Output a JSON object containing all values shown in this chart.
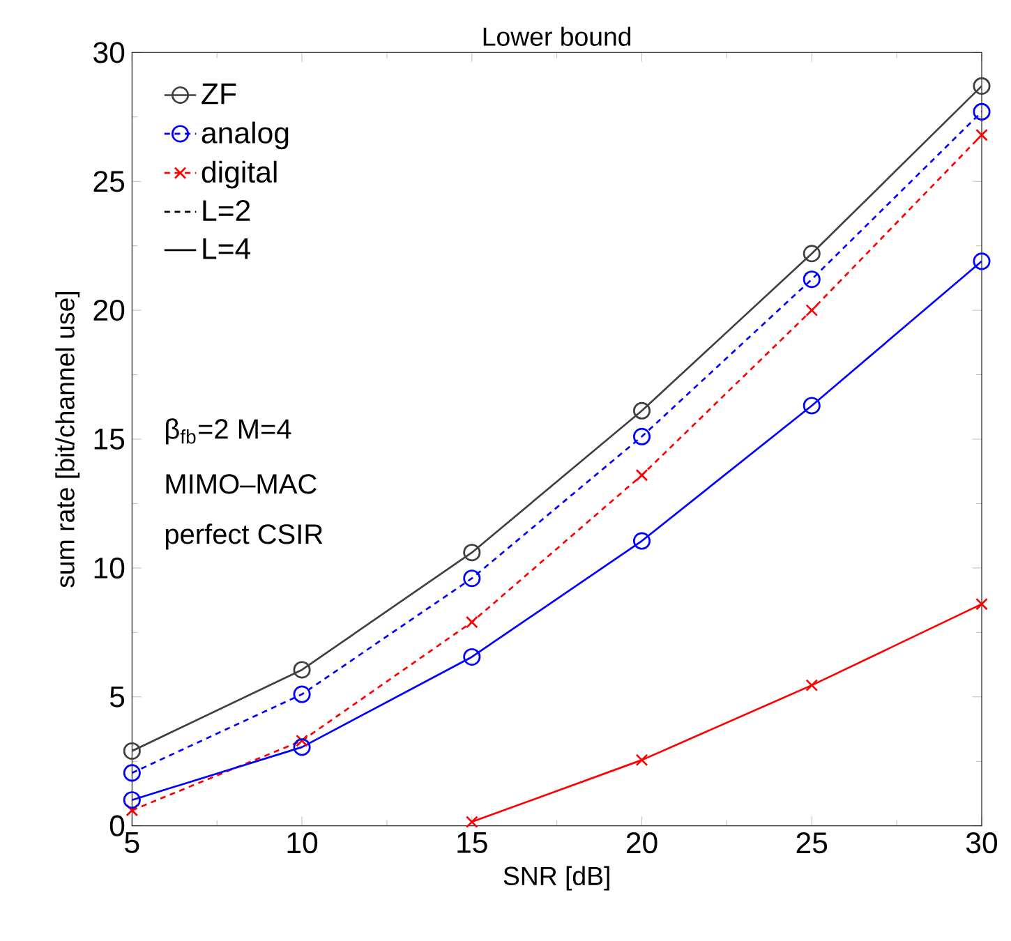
{
  "chart_data": {
    "type": "line",
    "title": "Lower bound",
    "xlabel": "SNR [dB]",
    "ylabel": "sum rate [bit/channel use]",
    "x": [
      5,
      10,
      15,
      20,
      25,
      30
    ],
    "series": [
      {
        "name": "ZF",
        "color": "#404040",
        "marker": "circle",
        "line_style": "solid",
        "values": [
          2.9,
          6.05,
          10.6,
          16.1,
          22.2,
          28.7
        ]
      },
      {
        "name": "analog",
        "color": "#0000ff",
        "marker": "circle",
        "line_style": "dashed",
        "values": [
          2.05,
          5.1,
          9.6,
          15.1,
          21.2,
          27.7
        ]
      },
      {
        "name": "digital",
        "color": "#ff0000",
        "marker": "cross",
        "line_style": "dashed",
        "values": [
          0.6,
          3.3,
          7.9,
          13.6,
          20.0,
          26.8
        ]
      },
      {
        "name": "L=2",
        "color": "#000000",
        "marker": "none",
        "line_style": "dashed",
        "values": [
          null,
          null,
          null,
          null,
          null,
          null
        ]
      },
      {
        "name": "L=4",
        "color": "#000000",
        "marker": "none",
        "line_style": "solid",
        "values": [
          null,
          null,
          null,
          null,
          null,
          null
        ]
      },
      {
        "color": "#0000ff",
        "marker": "circle",
        "line_style": "solid",
        "values": [
          1.0,
          3.05,
          6.55,
          11.05,
          16.3,
          21.9
        ]
      },
      {
        "color": "#ff0000",
        "marker": "cross",
        "line_style": "solid",
        "values": [
          null,
          null,
          0.15,
          2.55,
          5.45,
          8.6
        ]
      }
    ],
    "xlim": [
      5,
      30
    ],
    "xticks": [
      5,
      10,
      15,
      20,
      25,
      30
    ],
    "ylim": [
      0,
      30
    ],
    "yticks": [
      0,
      5,
      10,
      15,
      20,
      25,
      30
    ],
    "grid": false,
    "legend": "top left",
    "annotations": [
      "β$_{fb}$=2 M=4",
      "MIMO–MAC",
      "perfect CSIR"
    ]
  }
}
